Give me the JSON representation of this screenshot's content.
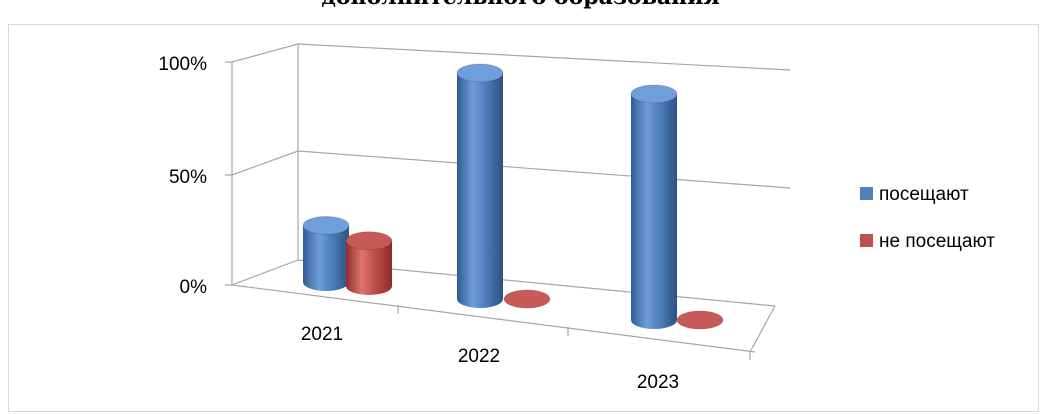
{
  "chart_data": {
    "type": "bar",
    "title": "дополнительного образования",
    "categories": [
      "2021",
      "2022",
      "2023"
    ],
    "series": [
      {
        "name": "посещают",
        "values": [
          25,
          100,
          100
        ],
        "color": "#4f81bd"
      },
      {
        "name": "не посещают",
        "values": [
          20,
          0,
          0
        ],
        "color": "#c0504d"
      }
    ],
    "y_ticks": [
      "0%",
      "50%",
      "100%"
    ],
    "ylim": [
      0,
      100
    ],
    "grid": true,
    "legend_position": "right",
    "style": "3d-cylinder"
  }
}
